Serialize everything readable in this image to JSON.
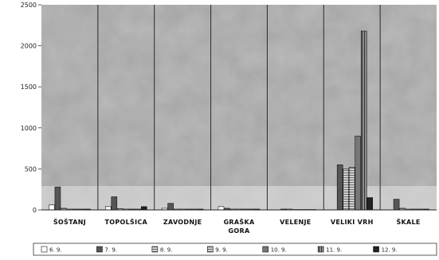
{
  "chart_data": {
    "type": "bar",
    "title": "",
    "xlabel": "",
    "ylabel": "",
    "ylim": [
      0,
      2500
    ],
    "yticks": [
      0,
      500,
      1000,
      1500,
      2000,
      2500
    ],
    "grid": false,
    "legend_position": "bottom",
    "categories": [
      [
        "ŠOŠTANJ"
      ],
      [
        "TOPOLŠICA"
      ],
      [
        "ZAVODNJE"
      ],
      [
        "GRAŠKA",
        "GORA"
      ],
      [
        "VELENJE"
      ],
      [
        "VELIKI VRH"
      ],
      [
        "ŠKALE"
      ]
    ],
    "series": [
      {
        "name": "6. 9.",
        "fill": "#ffffff",
        "pattern": "none",
        "values": [
          60,
          40,
          20,
          40,
          0,
          0,
          0
        ]
      },
      {
        "name": "7. 9.",
        "fill": "#555555",
        "pattern": "none",
        "values": [
          280,
          160,
          80,
          20,
          10,
          550,
          130
        ]
      },
      {
        "name": "8. 9.",
        "fill": "#9a9a9a",
        "pattern": "hatch",
        "values": [
          20,
          15,
          10,
          10,
          10,
          500,
          20
        ]
      },
      {
        "name": "9. 9.",
        "fill": "#d0d0d0",
        "pattern": "hatch",
        "values": [
          10,
          10,
          10,
          10,
          5,
          520,
          10
        ]
      },
      {
        "name": "10. 9.",
        "fill": "#777777",
        "pattern": "none",
        "values": [
          10,
          10,
          10,
          10,
          5,
          900,
          10
        ]
      },
      {
        "name": "11. 9.",
        "fill": "#7a7a7a",
        "pattern": "vstripe",
        "values": [
          10,
          10,
          10,
          10,
          5,
          2180,
          10
        ]
      },
      {
        "name": "12. 9.",
        "fill": "#222222",
        "pattern": "none",
        "values": [
          10,
          40,
          10,
          10,
          5,
          150,
          10
        ]
      }
    ]
  }
}
